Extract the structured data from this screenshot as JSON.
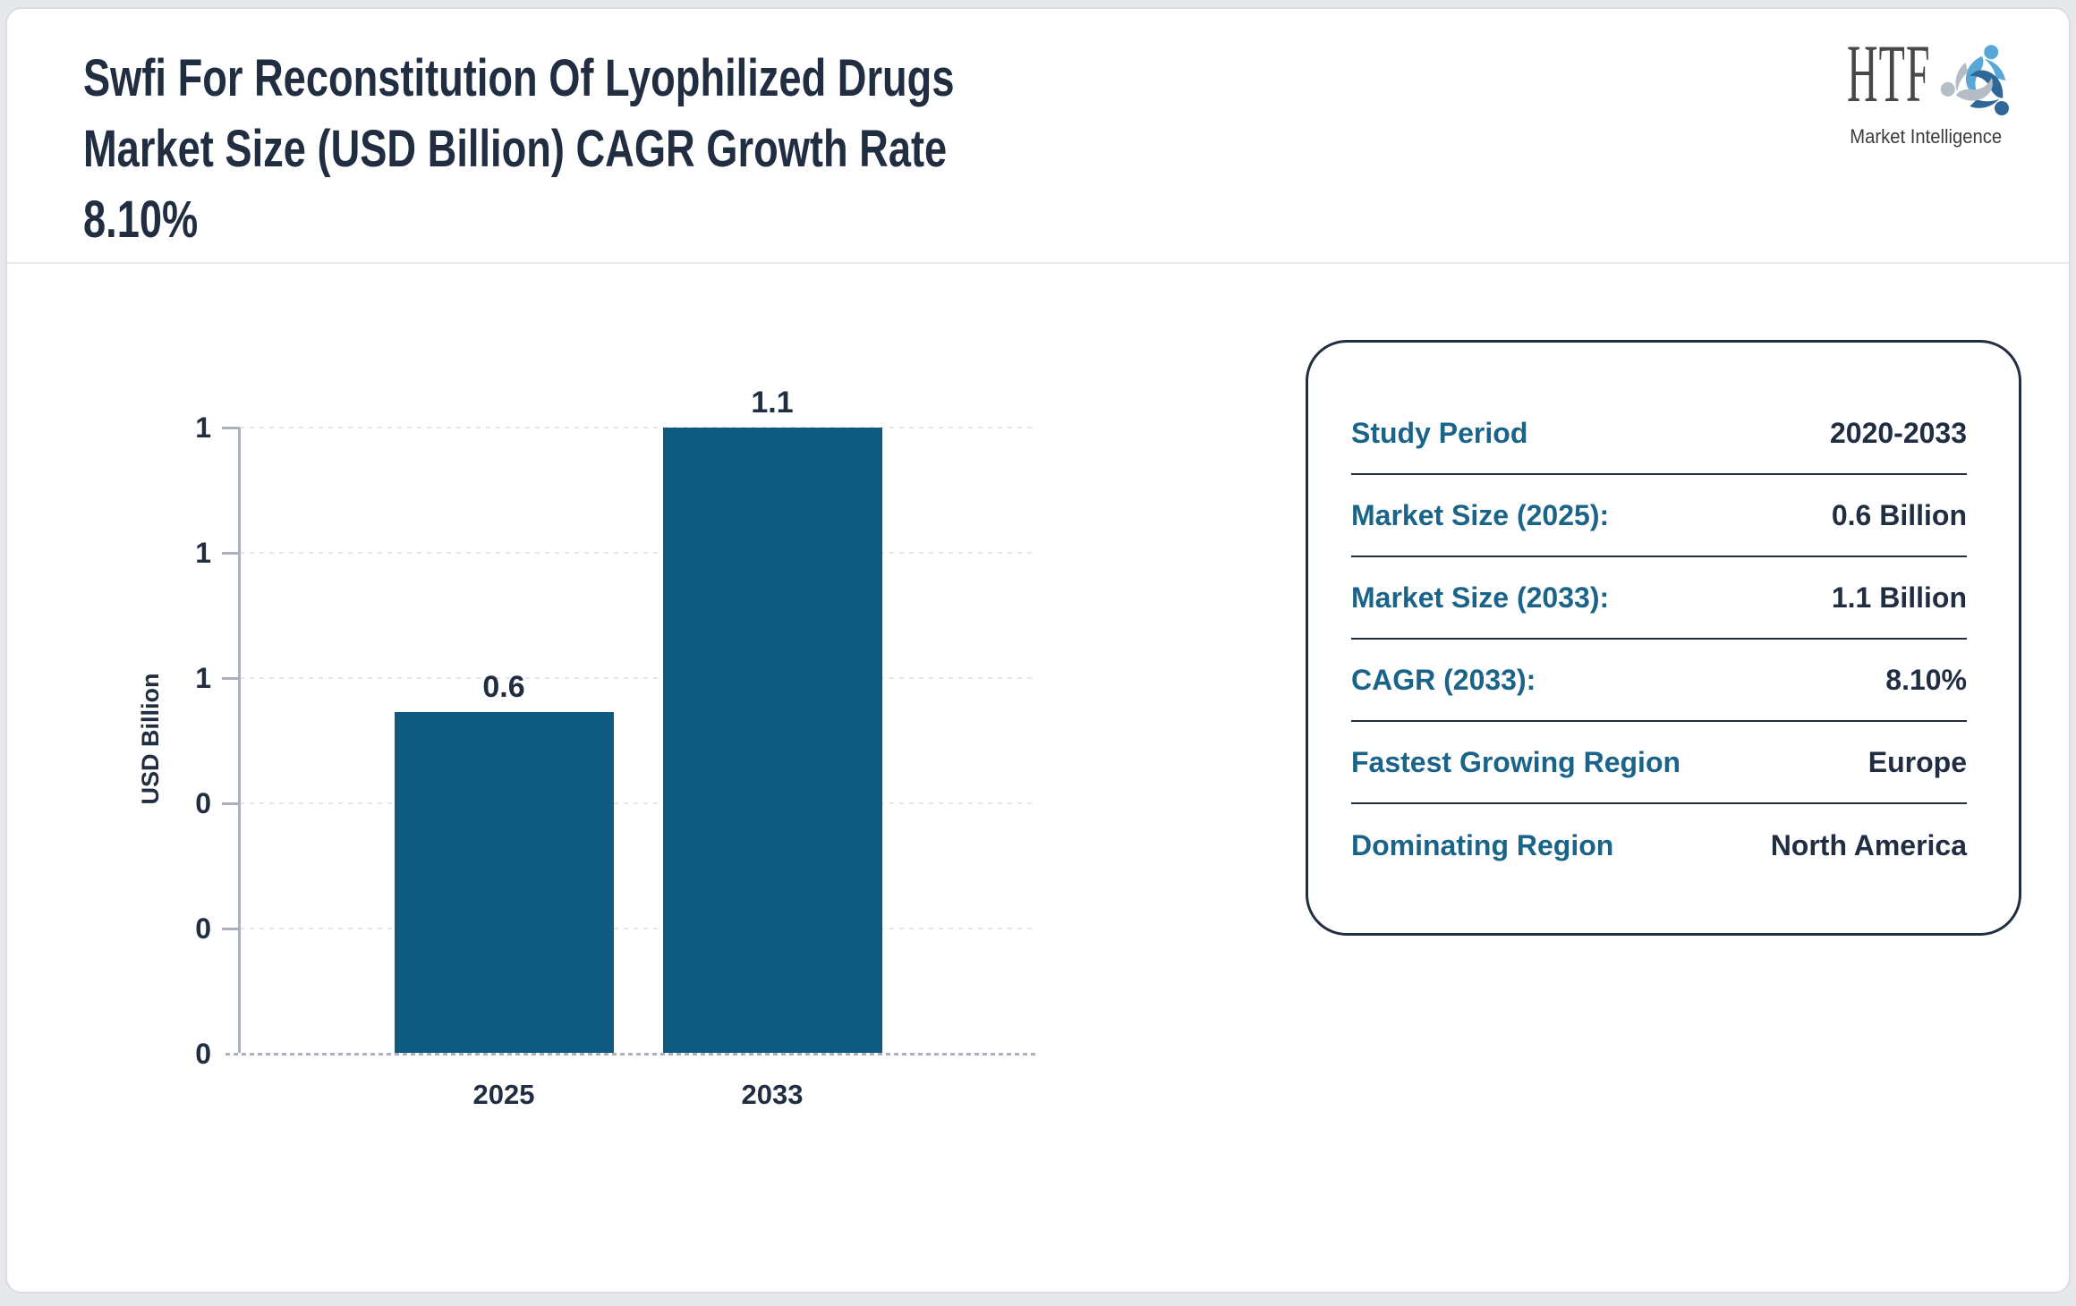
{
  "header": {
    "title_lines": [
      "Swfi For Reconstitution Of Lyophilized Drugs",
      "Market Size (USD Billion) CAGR Growth Rate",
      "8.10%"
    ],
    "logo": {
      "text": "HTF",
      "subtext": "Market Intelligence",
      "icon": "people-swirl-icon",
      "icon_colors": [
        "#59a7d7",
        "#2f6898",
        "#b4bdc5"
      ]
    }
  },
  "chart_data": {
    "type": "bar",
    "title": "",
    "categories": [
      "2025",
      "2033"
    ],
    "values": [
      0.6,
      1.1
    ],
    "value_labels": [
      "0.6",
      "1.1"
    ],
    "xlabel": "",
    "ylabel": "USD Billion",
    "ylim": [
      0,
      1.1
    ],
    "ytick_labels_bottom_to_top": [
      "0",
      "0",
      "0",
      "1",
      "1",
      "1"
    ],
    "grid": "horizontal-dashed",
    "legend": "none",
    "bar_color": "#0d5b80"
  },
  "info_panel": {
    "rows": [
      {
        "label": "Study Period",
        "value": "2020-2033"
      },
      {
        "label": "Market Size (2025):",
        "value": "0.6 Billion"
      },
      {
        "label": "Market Size (2033):",
        "value": "1.1 Billion"
      },
      {
        "label": "CAGR (2033):",
        "value": "8.10%"
      },
      {
        "label": "Fastest Growing Region",
        "value": "Europe"
      },
      {
        "label": "Dominating Region",
        "value": "North America"
      }
    ]
  },
  "colors": {
    "title_navy": "#212e42",
    "label_teal": "#1a6489",
    "bar_teal": "#0d5b80",
    "axis_gray": "#aab1bc",
    "gridline_gray": "#e4e6e9",
    "page_background": "#e6e8ec"
  }
}
